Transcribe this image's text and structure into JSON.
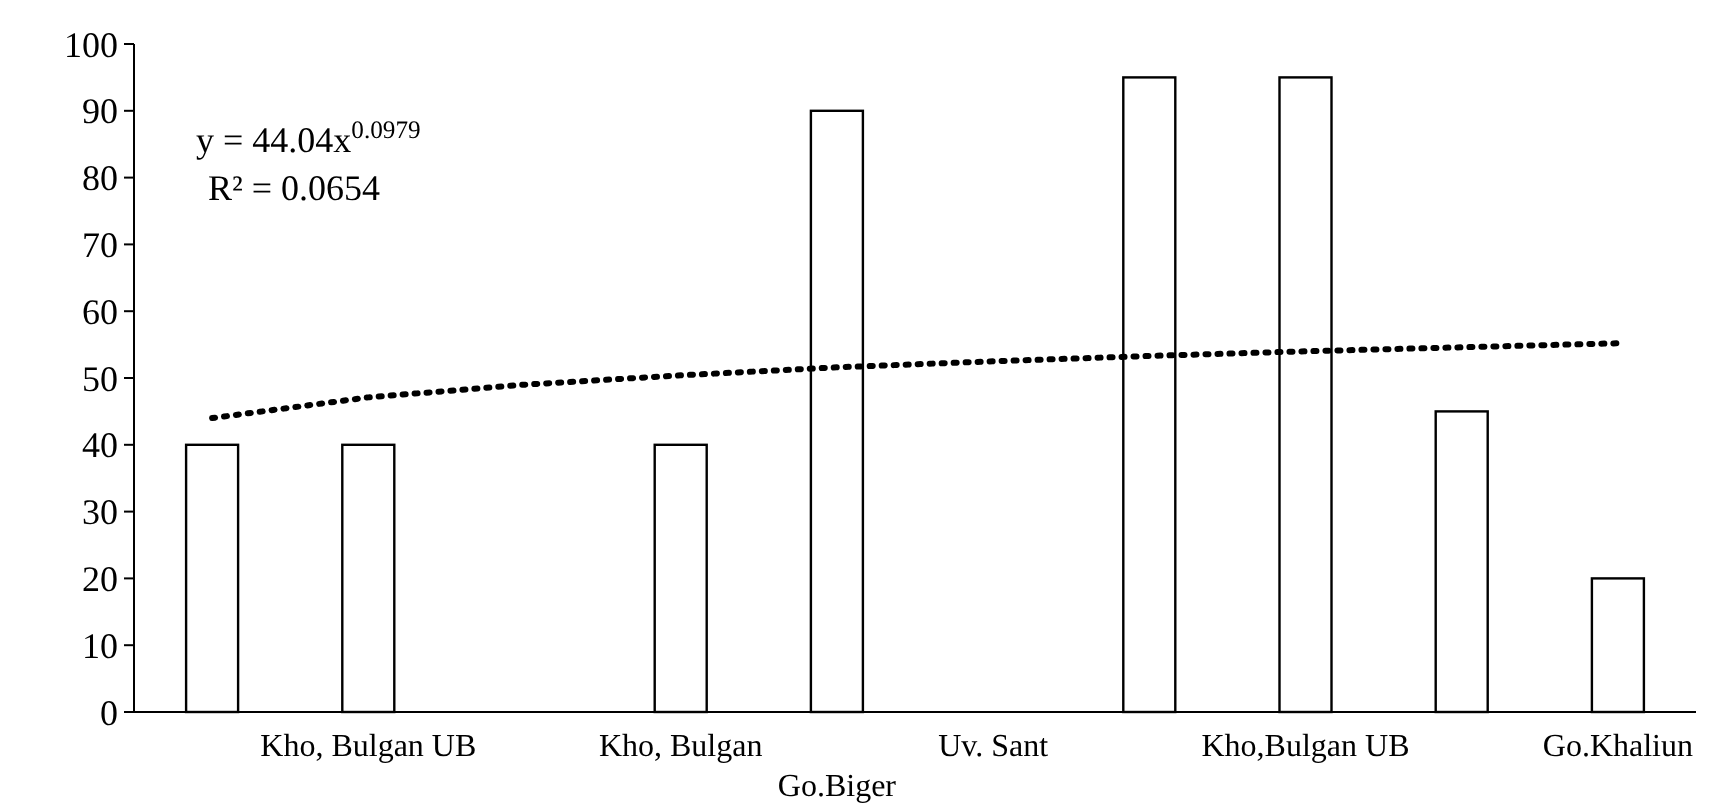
{
  "chart_data": {
    "type": "bar",
    "categories": [
      null,
      "Kho, Bulgan  UB",
      null,
      "Kho, Bulgan",
      "Go.Biger",
      "Uv. Sant",
      null,
      "Kho,Bulgan UB",
      null,
      "Go.Khaliun"
    ],
    "series": [
      {
        "color": "#ffffff",
        "values": [
          40,
          40,
          null,
          40,
          90,
          null,
          95,
          95,
          45,
          20
        ]
      },
      {
        "type": "line",
        "color": "#000000",
        "line_style": "dotted",
        "marker": "none",
        "values": [
          44,
          47.1,
          49,
          50.4,
          51.6,
          52.5,
          53.3,
          54,
          54.6,
          55.2
        ]
      }
    ],
    "ylim": [
      0,
      100
    ],
    "yticks": [
      0,
      10,
      20,
      30,
      40,
      50,
      60,
      70,
      80,
      90,
      100
    ],
    "grid": false,
    "annotations": [
      "y = 44.04x$^{0.0979}$",
      "R² = 0.0654"
    ]
  }
}
